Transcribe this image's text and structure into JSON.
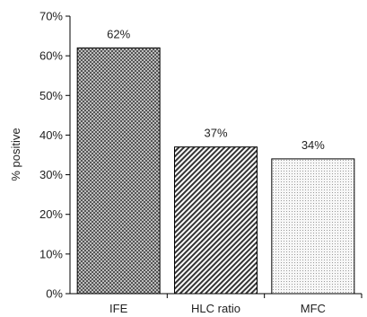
{
  "chart_data": {
    "type": "bar",
    "title": "",
    "xlabel": "",
    "ylabel": "% positive",
    "ylim": [
      0,
      70
    ],
    "yticks": [
      0,
      10,
      20,
      30,
      40,
      50,
      60,
      70
    ],
    "ytick_labels": [
      "0%",
      "10%",
      "20%",
      "30%",
      "40%",
      "50%",
      "60%",
      "70%"
    ],
    "categories": [
      "IFE",
      "HLC ratio",
      "MFC"
    ],
    "values": [
      62,
      37,
      34
    ],
    "data_labels": [
      "62%",
      "37%",
      "34%"
    ],
    "bar_patterns": [
      "checkered-dark",
      "diagonal-hatch",
      "light-dots"
    ],
    "bar_edge_color": "#000000",
    "grid": false,
    "legend": "none"
  }
}
